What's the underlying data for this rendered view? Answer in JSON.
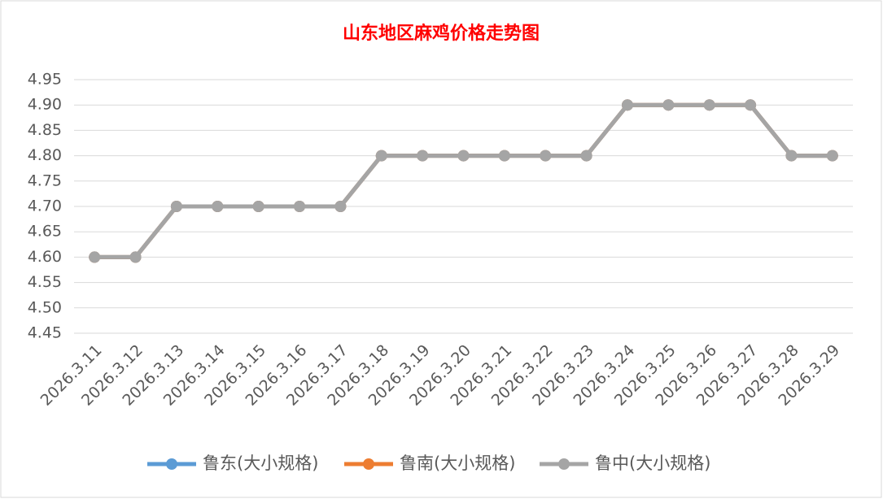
{
  "chart_data": {
    "type": "line",
    "title": "山东地区麻鸡价格走势图",
    "categories": [
      "2026.3.11",
      "2026.3.12",
      "2026.3.13",
      "2026.3.14",
      "2026.3.15",
      "2026.3.16",
      "2026.3.17",
      "2026.3.18",
      "2026.3.19",
      "2026.3.20",
      "2026.3.21",
      "2026.3.22",
      "2026.3.23",
      "2026.3.24",
      "2026.3.25",
      "2026.3.26",
      "2026.3.27",
      "2026.3.28",
      "2026.3.29"
    ],
    "series": [
      {
        "name": "鲁东(大小规格)",
        "color": "#5b9bd5",
        "values": [
          4.6,
          4.6,
          4.7,
          4.7,
          4.7,
          4.7,
          4.7,
          4.8,
          4.8,
          4.8,
          4.8,
          4.8,
          4.8,
          4.9,
          4.9,
          4.9,
          4.9,
          4.8,
          4.8
        ]
      },
      {
        "name": "鲁南(大小规格)",
        "color": "#ed7d31",
        "values": [
          4.6,
          4.6,
          4.7,
          4.7,
          4.7,
          4.7,
          4.7,
          4.8,
          4.8,
          4.8,
          4.8,
          4.8,
          4.8,
          4.9,
          4.9,
          4.9,
          4.9,
          4.8,
          4.8
        ]
      },
      {
        "name": "鲁中(大小规格)",
        "color": "#a5a5a5",
        "values": [
          4.6,
          4.6,
          4.7,
          4.7,
          4.7,
          4.7,
          4.7,
          4.8,
          4.8,
          4.8,
          4.8,
          4.8,
          4.8,
          4.9,
          4.9,
          4.9,
          4.9,
          4.8,
          4.8
        ]
      }
    ],
    "ylim": [
      4.45,
      4.95
    ],
    "yticks": [
      4.45,
      {
        "value": 4.5,
        "label": "4.50"
      },
      4.55,
      {
        "value": 4.6,
        "label": "4.60"
      },
      4.65,
      {
        "value": 4.7,
        "label": "4.70"
      },
      4.75,
      {
        "value": 4.8,
        "label": "4.80"
      },
      4.85,
      {
        "value": 4.9,
        "label": "4.90"
      },
      4.95
    ],
    "grid": true,
    "legend": "bottom"
  }
}
